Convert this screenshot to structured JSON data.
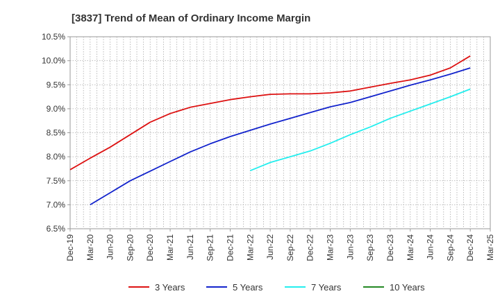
{
  "chart_data": {
    "type": "line",
    "title": "[3837]  Trend of Mean of Ordinary Income Margin",
    "xlabel": "",
    "ylabel": "",
    "x_ticks": [
      "Dec-19",
      "Mar-20",
      "Jun-20",
      "Sep-20",
      "Dec-20",
      "Mar-21",
      "Jun-21",
      "Sep-21",
      "Dec-21",
      "Mar-22",
      "Jun-22",
      "Sep-22",
      "Dec-22",
      "Mar-23",
      "Jun-23",
      "Sep-23",
      "Dec-23",
      "Mar-24",
      "Jun-24",
      "Sep-24",
      "Dec-24",
      "Mar-25"
    ],
    "y_ticks": [
      "6.5%",
      "7.0%",
      "7.5%",
      "8.0%",
      "8.5%",
      "9.0%",
      "9.5%",
      "10.0%",
      "10.5%"
    ],
    "ylim": [
      6.5,
      10.5
    ],
    "grid": true,
    "legend_position": "bottom",
    "series": [
      {
        "name": "3 Years",
        "color": "#dd1111",
        "x": [
          "Dec-19",
          "Mar-20",
          "Jun-20",
          "Sep-20",
          "Dec-20",
          "Mar-21",
          "Jun-21",
          "Sep-21",
          "Dec-21",
          "Mar-22",
          "Jun-22",
          "Sep-22",
          "Dec-22",
          "Mar-23",
          "Jun-23",
          "Sep-23",
          "Dec-23",
          "Mar-24",
          "Jun-24",
          "Sep-24",
          "Dec-24"
        ],
        "values": [
          7.73,
          7.97,
          8.2,
          8.46,
          8.72,
          8.9,
          9.03,
          9.11,
          9.19,
          9.25,
          9.3,
          9.31,
          9.31,
          9.33,
          9.37,
          9.45,
          9.53,
          9.6,
          9.7,
          9.85,
          10.1
        ]
      },
      {
        "name": "5 Years",
        "color": "#1122cc",
        "x": [
          "Mar-20",
          "Jun-20",
          "Sep-20",
          "Dec-20",
          "Mar-21",
          "Jun-21",
          "Sep-21",
          "Dec-21",
          "Mar-22",
          "Jun-22",
          "Sep-22",
          "Dec-22",
          "Mar-23",
          "Jun-23",
          "Sep-23",
          "Dec-23",
          "Mar-24",
          "Jun-24",
          "Sep-24",
          "Dec-24"
        ],
        "values": [
          7.0,
          7.25,
          7.5,
          7.7,
          7.9,
          8.1,
          8.27,
          8.42,
          8.55,
          8.68,
          8.8,
          8.92,
          9.04,
          9.13,
          9.25,
          9.37,
          9.49,
          9.6,
          9.72,
          9.85
        ]
      },
      {
        "name": "7 Years",
        "color": "#22eeee",
        "x": [
          "Mar-22",
          "Jun-22",
          "Sep-22",
          "Dec-22",
          "Mar-23",
          "Jun-23",
          "Sep-23",
          "Dec-23",
          "Mar-24",
          "Jun-24",
          "Sep-24",
          "Dec-24"
        ],
        "values": [
          7.71,
          7.88,
          8.0,
          8.12,
          8.28,
          8.46,
          8.62,
          8.8,
          8.95,
          9.1,
          9.25,
          9.41
        ]
      },
      {
        "name": "10 Years",
        "color": "#228822",
        "x": [],
        "values": []
      }
    ]
  }
}
